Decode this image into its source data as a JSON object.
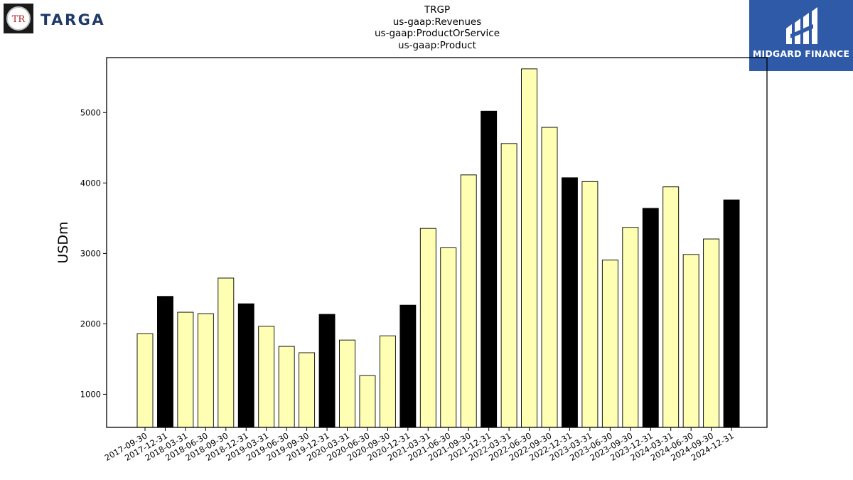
{
  "header": {
    "title_lines": [
      "TRGP",
      "us-gaap:Revenues",
      "us-gaap:ProductOrService",
      "us-gaap:Product"
    ]
  },
  "logos": {
    "left": {
      "wordmark": "TARGA",
      "badge_text": "TR"
    },
    "right": {
      "brand": "MIDGARD FINANCE"
    }
  },
  "colors": {
    "bar_default": "#ffffb3",
    "bar_q4": "#000000",
    "bar_edge": "#000000",
    "logo_right_bg": "#2f5aa8",
    "logo_left_text": "#1f3a68"
  },
  "chart_data": {
    "type": "bar",
    "title": "TRGP\nus-gaap:Revenues\nus-gaap:ProductOrService\nus-gaap:Product",
    "xlabel": "",
    "ylabel": "USDm",
    "ylim": [
      530,
      5780
    ],
    "yticks": [
      1000,
      2000,
      3000,
      4000,
      5000
    ],
    "grid": false,
    "categories": [
      "2017-09-30",
      "2017-12-31",
      "2018-03-31",
      "2018-06-30",
      "2018-09-30",
      "2018-12-31",
      "2019-03-31",
      "2019-06-30",
      "2019-09-30",
      "2019-12-31",
      "2020-03-31",
      "2020-06-30",
      "2020-09-30",
      "2020-12-31",
      "2021-03-31",
      "2021-06-30",
      "2021-09-30",
      "2021-12-31",
      "2022-03-31",
      "2022-06-30",
      "2022-09-30",
      "2022-12-31",
      "2023-03-31",
      "2023-06-30",
      "2023-09-30",
      "2023-12-31",
      "2024-03-31",
      "2024-06-30",
      "2024-09-30",
      "2024-12-31"
    ],
    "values": [
      1860,
      2390,
      2165,
      2145,
      2650,
      2285,
      1965,
      1680,
      1590,
      2135,
      1770,
      1265,
      1830,
      2265,
      3355,
      3080,
      4115,
      5020,
      4560,
      5620,
      4790,
      4075,
      4020,
      2905,
      3370,
      3640,
      3945,
      2985,
      3205,
      3760
    ],
    "highlight_rule": "quarter ending 12-31 drawn black"
  }
}
